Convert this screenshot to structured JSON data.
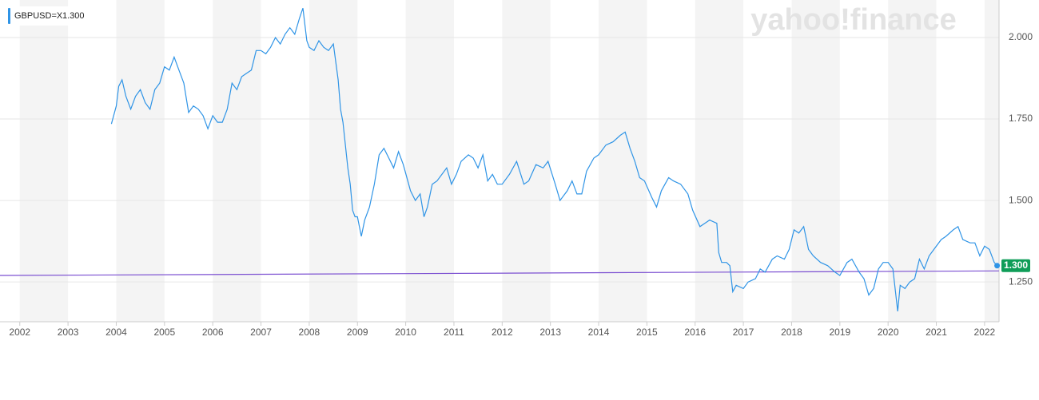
{
  "chart_data": {
    "type": "line",
    "watermark": "yahoo!finance",
    "legend_label": "GBPUSD=X",
    "last_value": {
      "value": 1.3,
      "label": "1.300"
    },
    "last_value_color": "#0f9d58",
    "band_color": "#f4f4f4",
    "grid": true,
    "xlim": [
      2001.59,
      2022.3
    ],
    "xticks": [
      2002,
      2003,
      2004,
      2005,
      2006,
      2007,
      2008,
      2009,
      2010,
      2011,
      2012,
      2013,
      2014,
      2015,
      2016,
      2017,
      2018,
      2019,
      2020,
      2021,
      2022
    ],
    "ylim": [
      1.128,
      2.115
    ],
    "yticks": [
      {
        "value": 1.25,
        "label": "1.250"
      },
      {
        "value": 1.5,
        "label": "1.500"
      },
      {
        "value": 1.75,
        "label": "1.750"
      },
      {
        "value": 2,
        "label": "2.000"
      }
    ],
    "series": [
      {
        "name": "GBPUSD=X",
        "color": "#2f94e6",
        "x": [
          2003.9,
          2004.0,
          2004.05,
          2004.12,
          2004.2,
          2004.3,
          2004.4,
          2004.5,
          2004.6,
          2004.7,
          2004.8,
          2004.9,
          2005.0,
          2005.1,
          2005.2,
          2005.3,
          2005.4,
          2005.5,
          2005.6,
          2005.7,
          2005.8,
          2005.9,
          2006.0,
          2006.1,
          2006.2,
          2006.3,
          2006.4,
          2006.5,
          2006.6,
          2006.7,
          2006.8,
          2006.9,
          2007.0,
          2007.1,
          2007.2,
          2007.3,
          2007.4,
          2007.5,
          2007.6,
          2007.7,
          2007.8,
          2007.87,
          2007.95,
          2008.0,
          2008.1,
          2008.2,
          2008.3,
          2008.4,
          2008.5,
          2008.6,
          2008.65,
          2008.7,
          2008.8,
          2008.85,
          2008.9,
          2008.95,
          2009.0,
          2009.08,
          2009.15,
          2009.25,
          2009.35,
          2009.45,
          2009.55,
          2009.65,
          2009.75,
          2009.85,
          2009.95,
          2010.1,
          2010.2,
          2010.3,
          2010.38,
          2010.45,
          2010.55,
          2010.65,
          2010.75,
          2010.85,
          2010.95,
          2011.05,
          2011.15,
          2011.3,
          2011.4,
          2011.5,
          2011.6,
          2011.7,
          2011.8,
          2011.9,
          2012.0,
          2012.15,
          2012.3,
          2012.45,
          2012.55,
          2012.7,
          2012.85,
          2012.95,
          2013.1,
          2013.2,
          2013.35,
          2013.45,
          2013.55,
          2013.65,
          2013.75,
          2013.9,
          2014.0,
          2014.15,
          2014.3,
          2014.45,
          2014.55,
          2014.65,
          2014.75,
          2014.85,
          2014.95,
          2015.1,
          2015.2,
          2015.3,
          2015.45,
          2015.55,
          2015.7,
          2015.85,
          2015.95,
          2016.1,
          2016.2,
          2016.3,
          2016.45,
          2016.49,
          2016.55,
          2016.65,
          2016.72,
          2016.78,
          2016.85,
          2017.0,
          2017.1,
          2017.25,
          2017.35,
          2017.45,
          2017.6,
          2017.7,
          2017.85,
          2017.95,
          2018.05,
          2018.15,
          2018.25,
          2018.35,
          2018.45,
          2018.6,
          2018.75,
          2018.9,
          2019.0,
          2019.15,
          2019.25,
          2019.4,
          2019.5,
          2019.6,
          2019.7,
          2019.8,
          2019.9,
          2020.0,
          2020.1,
          2020.2,
          2020.25,
          2020.35,
          2020.45,
          2020.55,
          2020.65,
          2020.75,
          2020.85,
          2020.95,
          2021.1,
          2021.2,
          2021.35,
          2021.45,
          2021.55,
          2021.7,
          2021.8,
          2021.9,
          2022.0,
          2022.1,
          2022.2,
          2022.26
        ],
        "values": [
          1.735,
          1.79,
          1.85,
          1.87,
          1.82,
          1.78,
          1.82,
          1.84,
          1.8,
          1.78,
          1.84,
          1.86,
          1.91,
          1.9,
          1.94,
          1.9,
          1.86,
          1.77,
          1.79,
          1.78,
          1.76,
          1.72,
          1.76,
          1.74,
          1.74,
          1.78,
          1.86,
          1.84,
          1.88,
          1.89,
          1.9,
          1.96,
          1.96,
          1.95,
          1.97,
          2.0,
          1.98,
          2.01,
          2.03,
          2.01,
          2.06,
          2.09,
          1.99,
          1.97,
          1.96,
          1.99,
          1.97,
          1.96,
          1.98,
          1.87,
          1.78,
          1.74,
          1.6,
          1.55,
          1.47,
          1.45,
          1.45,
          1.39,
          1.44,
          1.48,
          1.55,
          1.64,
          1.66,
          1.63,
          1.6,
          1.65,
          1.61,
          1.53,
          1.5,
          1.52,
          1.45,
          1.48,
          1.55,
          1.56,
          1.58,
          1.6,
          1.55,
          1.58,
          1.62,
          1.64,
          1.63,
          1.6,
          1.64,
          1.56,
          1.58,
          1.55,
          1.55,
          1.58,
          1.62,
          1.55,
          1.56,
          1.61,
          1.6,
          1.62,
          1.55,
          1.5,
          1.53,
          1.56,
          1.52,
          1.52,
          1.59,
          1.63,
          1.64,
          1.67,
          1.68,
          1.7,
          1.71,
          1.66,
          1.62,
          1.57,
          1.56,
          1.51,
          1.48,
          1.53,
          1.57,
          1.56,
          1.55,
          1.52,
          1.47,
          1.42,
          1.43,
          1.44,
          1.43,
          1.34,
          1.31,
          1.31,
          1.3,
          1.22,
          1.24,
          1.23,
          1.25,
          1.26,
          1.29,
          1.28,
          1.32,
          1.33,
          1.32,
          1.35,
          1.41,
          1.4,
          1.42,
          1.35,
          1.33,
          1.31,
          1.3,
          1.28,
          1.27,
          1.31,
          1.32,
          1.28,
          1.26,
          1.21,
          1.23,
          1.29,
          1.31,
          1.31,
          1.29,
          1.16,
          1.24,
          1.23,
          1.25,
          1.26,
          1.32,
          1.29,
          1.33,
          1.35,
          1.38,
          1.39,
          1.41,
          1.42,
          1.38,
          1.37,
          1.37,
          1.33,
          1.36,
          1.35,
          1.31,
          1.3
        ]
      }
    ],
    "trend_line": {
      "color": "#7b4fd1",
      "x": [
        2001.59,
        2022.3
      ],
      "values": [
        1.27,
        1.284
      ]
    }
  }
}
